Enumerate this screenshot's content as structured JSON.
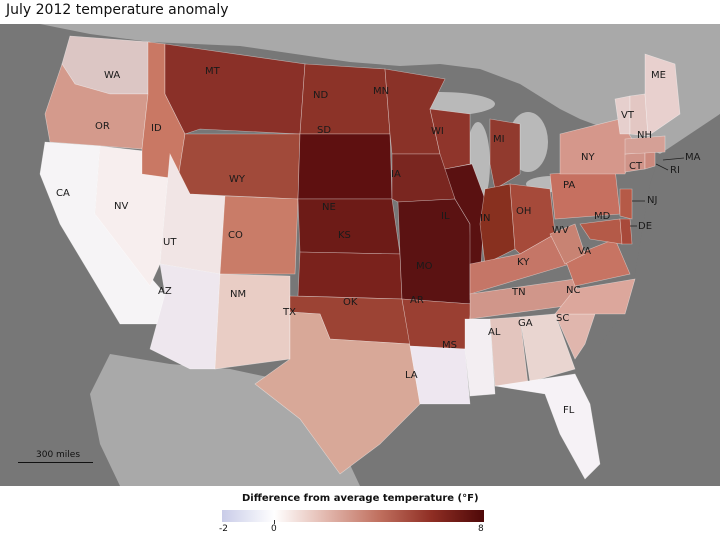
{
  "title": "July 2012 temperature anomaly",
  "legend": {
    "title": "Difference from average temperature (°F)",
    "min_label": "-2",
    "zero_label": "0",
    "max_label": "8",
    "colors": [
      "#c9cce8",
      "#ffffff",
      "#e2b7ad",
      "#c0705f",
      "#8f2e24",
      "#4e0808"
    ]
  },
  "scale": {
    "label": "300 miles"
  },
  "states": [
    "WA",
    "OR",
    "CA",
    "ID",
    "NV",
    "MT",
    "WY",
    "UT",
    "AZ",
    "CO",
    "NM",
    "ND",
    "SD",
    "NE",
    "KS",
    "OK",
    "TX",
    "MN",
    "IA",
    "MO",
    "AR",
    "LA",
    "WI",
    "IL",
    "MI",
    "IN",
    "OH",
    "KY",
    "TN",
    "MS",
    "AL",
    "GA",
    "FL",
    "SC",
    "NC",
    "VA",
    "WV",
    "PA",
    "NY",
    "MD",
    "DE",
    "NJ",
    "CT",
    "RI",
    "MA",
    "VT",
    "NH",
    "ME"
  ],
  "colors": {
    "water": "#777777",
    "land_other": "#a9a9a9"
  }
}
